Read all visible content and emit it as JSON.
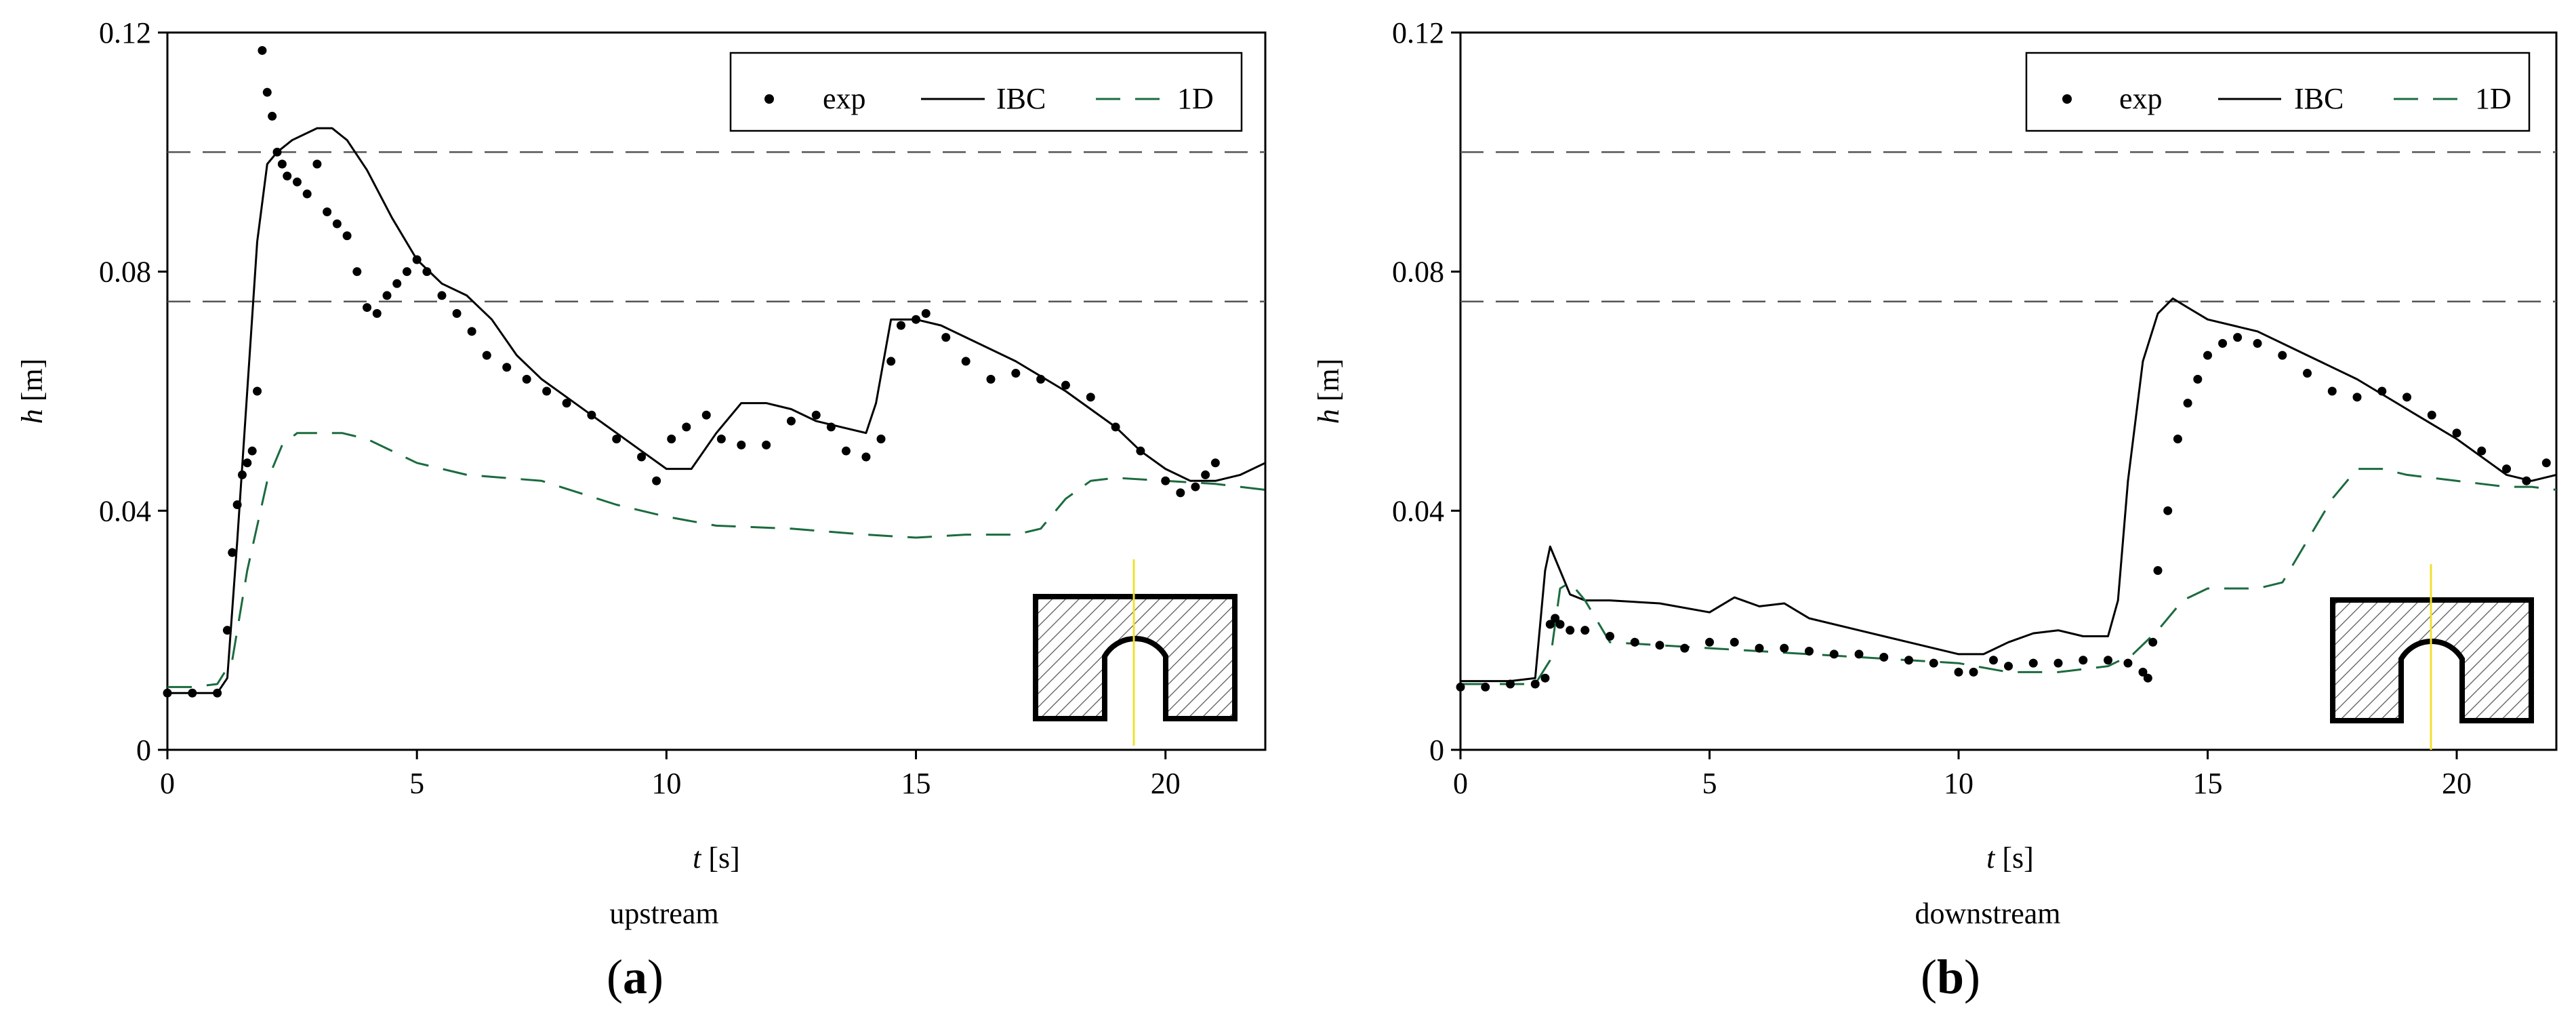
{
  "chart_data": [
    {
      "type": "line",
      "panel_label": "a",
      "caption": "upstream",
      "xlabel": "t",
      "xunit": "[s]",
      "ylabel": "h",
      "yunit": "[m]",
      "xlim": [
        0,
        22
      ],
      "ylim": [
        0,
        0.12
      ],
      "xticks": [
        0,
        5,
        10,
        15,
        20
      ],
      "xtick_labels": [
        "0",
        "5",
        "10",
        "15",
        "20"
      ],
      "yticks": [
        0,
        0.04,
        0.08,
        0.12
      ],
      "ytick_labels": [
        "0",
        "0.04",
        "0.08",
        "0.12"
      ],
      "grid": false,
      "reference_lines": [
        0.1,
        0.075
      ],
      "legend": {
        "placement": "top-right",
        "entries": [
          "exp",
          "IBC",
          "1D"
        ]
      },
      "series": [
        {
          "name": "exp",
          "style": "points",
          "color": "#000000",
          "x": [
            0,
            0.5,
            1.0,
            1.2,
            1.3,
            1.4,
            1.5,
            1.6,
            1.7,
            1.8,
            1.9,
            2.0,
            2.1,
            2.2,
            2.3,
            2.4,
            2.6,
            2.8,
            3.0,
            3.2,
            3.4,
            3.6,
            3.8,
            4.0,
            4.2,
            4.4,
            4.6,
            4.8,
            5.0,
            5.2,
            5.5,
            5.8,
            6.1,
            6.4,
            6.8,
            7.2,
            7.6,
            8.0,
            8.5,
            9.0,
            9.5,
            9.8,
            10.1,
            10.4,
            10.8,
            11.1,
            11.5,
            12.0,
            12.5,
            13.0,
            13.3,
            13.6,
            14.0,
            14.3,
            14.5,
            14.7,
            15.0,
            15.2,
            15.6,
            16.0,
            16.5,
            17.0,
            17.5,
            18.0,
            18.5,
            19.0,
            19.5,
            20.0,
            20.3,
            20.6,
            20.8,
            21.0
          ],
          "y": [
            0.0095,
            0.0095,
            0.0095,
            0.02,
            0.033,
            0.041,
            0.046,
            0.048,
            0.05,
            0.06,
            0.117,
            0.11,
            0.106,
            0.1,
            0.098,
            0.096,
            0.095,
            0.093,
            0.098,
            0.09,
            0.088,
            0.086,
            0.08,
            0.074,
            0.073,
            0.076,
            0.078,
            0.08,
            0.082,
            0.08,
            0.076,
            0.073,
            0.07,
            0.066,
            0.064,
            0.062,
            0.06,
            0.058,
            0.056,
            0.052,
            0.049,
            0.045,
            0.052,
            0.054,
            0.056,
            0.052,
            0.051,
            0.051,
            0.055,
            0.056,
            0.054,
            0.05,
            0.049,
            0.052,
            0.065,
            0.071,
            0.072,
            0.073,
            0.069,
            0.065,
            0.062,
            0.063,
            0.062,
            0.061,
            0.059,
            0.054,
            0.05,
            0.045,
            0.043,
            0.044,
            0.046,
            0.048
          ]
        },
        {
          "name": "IBC",
          "style": "solid",
          "color": "#000000",
          "x": [
            0,
            0.5,
            1.0,
            1.2,
            1.4,
            1.6,
            1.8,
            2.0,
            2.2,
            2.5,
            3.0,
            3.3,
            3.6,
            4.0,
            4.5,
            5.0,
            5.5,
            6.0,
            6.5,
            7.0,
            7.5,
            8.0,
            8.5,
            9.0,
            9.5,
            10.0,
            10.5,
            11.0,
            11.5,
            12.0,
            12.5,
            13.0,
            13.5,
            14.0,
            14.2,
            14.5,
            15.0,
            15.5,
            16.0,
            17.0,
            18.0,
            19.0,
            19.5,
            20.0,
            20.5,
            21.0,
            21.5,
            22.0
          ],
          "y": [
            0.0095,
            0.0095,
            0.0095,
            0.012,
            0.035,
            0.06,
            0.085,
            0.098,
            0.1,
            0.102,
            0.104,
            0.104,
            0.102,
            0.097,
            0.089,
            0.082,
            0.078,
            0.076,
            0.072,
            0.066,
            0.062,
            0.059,
            0.056,
            0.053,
            0.05,
            0.047,
            0.047,
            0.053,
            0.058,
            0.058,
            0.057,
            0.055,
            0.054,
            0.053,
            0.058,
            0.072,
            0.072,
            0.071,
            0.069,
            0.065,
            0.06,
            0.054,
            0.05,
            0.047,
            0.045,
            0.045,
            0.046,
            0.048
          ]
        },
        {
          "name": "1D",
          "style": "dashed",
          "color": "#1b6b3f",
          "x": [
            0,
            0.5,
            1.0,
            1.3,
            1.6,
            2.0,
            2.3,
            2.6,
            3.0,
            3.5,
            4.0,
            5.0,
            6.0,
            7.5,
            9.0,
            10.0,
            11.0,
            12.5,
            14.0,
            15.0,
            16.0,
            17.0,
            17.5,
            18.0,
            18.5,
            19.0,
            20.0,
            21.0,
            22.0
          ],
          "y": [
            0.0105,
            0.0105,
            0.011,
            0.015,
            0.03,
            0.045,
            0.051,
            0.053,
            0.053,
            0.053,
            0.052,
            0.048,
            0.046,
            0.045,
            0.041,
            0.039,
            0.0375,
            0.037,
            0.036,
            0.0355,
            0.036,
            0.036,
            0.037,
            0.042,
            0.045,
            0.0455,
            0.045,
            0.0445,
            0.0435
          ]
        }
      ]
    },
    {
      "type": "line",
      "panel_label": "b",
      "caption": "downstream",
      "xlabel": "t",
      "xunit": "[s]",
      "ylabel": "h",
      "yunit": "[m]",
      "xlim": [
        0,
        22
      ],
      "ylim": [
        0,
        0.12
      ],
      "xticks": [
        0,
        5,
        10,
        15,
        20
      ],
      "xtick_labels": [
        "0",
        "5",
        "10",
        "15",
        "20"
      ],
      "yticks": [
        0,
        0.04,
        0.08,
        0.12
      ],
      "ytick_labels": [
        "0",
        "0.04",
        "0.08",
        "0.12"
      ],
      "grid": false,
      "reference_lines": [
        0.1,
        0.075
      ],
      "legend": {
        "placement": "top-right",
        "entries": [
          "exp",
          "IBC",
          "1D"
        ]
      },
      "series": [
        {
          "name": "exp",
          "style": "points",
          "color": "#000000",
          "x": [
            0,
            0.5,
            1.0,
            1.5,
            1.7,
            1.8,
            1.9,
            2.0,
            2.2,
            2.5,
            3.0,
            3.5,
            4.0,
            4.5,
            5.0,
            5.5,
            6.0,
            6.5,
            7.0,
            7.5,
            8.0,
            8.5,
            9.0,
            9.5,
            10.0,
            10.3,
            10.7,
            11.0,
            11.5,
            12.0,
            12.5,
            13.0,
            13.4,
            13.7,
            13.8,
            13.9,
            14.0,
            14.2,
            14.4,
            14.6,
            14.8,
            15.0,
            15.3,
            15.6,
            16.0,
            16.5,
            17.0,
            17.5,
            18.0,
            18.5,
            19.0,
            19.5,
            20.0,
            20.5,
            21.0,
            21.4,
            21.8
          ],
          "y": [
            0.0105,
            0.0105,
            0.011,
            0.011,
            0.012,
            0.021,
            0.022,
            0.021,
            0.02,
            0.02,
            0.019,
            0.018,
            0.0175,
            0.017,
            0.018,
            0.018,
            0.017,
            0.017,
            0.0165,
            0.016,
            0.016,
            0.0155,
            0.015,
            0.0145,
            0.013,
            0.013,
            0.015,
            0.014,
            0.0145,
            0.0145,
            0.015,
            0.015,
            0.0145,
            0.013,
            0.012,
            0.018,
            0.03,
            0.04,
            0.052,
            0.058,
            0.062,
            0.066,
            0.068,
            0.069,
            0.068,
            0.066,
            0.063,
            0.06,
            0.059,
            0.06,
            0.059,
            0.056,
            0.053,
            0.05,
            0.047,
            0.045,
            0.048
          ]
        },
        {
          "name": "IBC",
          "style": "solid",
          "color": "#000000",
          "x": [
            0,
            0.5,
            1.0,
            1.5,
            1.7,
            1.8,
            2.0,
            2.2,
            2.5,
            3.0,
            4.0,
            5.0,
            5.5,
            6.0,
            6.5,
            7.0,
            8.0,
            9.0,
            10.0,
            10.5,
            11.0,
            11.5,
            12.0,
            12.5,
            13.0,
            13.2,
            13.4,
            13.7,
            14.0,
            14.3,
            14.6,
            15.0,
            16.0,
            17.0,
            18.0,
            19.0,
            20.0,
            21.0,
            21.5,
            22.0
          ],
          "y": [
            0.0115,
            0.0115,
            0.0115,
            0.012,
            0.03,
            0.034,
            0.03,
            0.026,
            0.025,
            0.025,
            0.0245,
            0.023,
            0.0255,
            0.024,
            0.0245,
            0.022,
            0.02,
            0.018,
            0.016,
            0.016,
            0.018,
            0.0195,
            0.02,
            0.019,
            0.019,
            0.025,
            0.045,
            0.065,
            0.073,
            0.0755,
            0.074,
            0.072,
            0.07,
            0.066,
            0.062,
            0.057,
            0.052,
            0.046,
            0.045,
            0.046
          ]
        },
        {
          "name": "1D",
          "style": "dashed",
          "color": "#1b6b3f",
          "x": [
            0,
            0.5,
            1.0,
            1.5,
            1.8,
            2.0,
            2.2,
            2.5,
            3.0,
            4.0,
            5.0,
            6.0,
            7.0,
            8.0,
            9.0,
            10.0,
            11.0,
            12.0,
            13.0,
            13.5,
            14.0,
            14.5,
            15.0,
            16.0,
            16.5,
            17.0,
            17.5,
            18.0,
            18.5,
            19.0,
            20.0,
            21.0,
            21.5,
            22.0
          ],
          "y": [
            0.011,
            0.011,
            0.011,
            0.011,
            0.015,
            0.027,
            0.028,
            0.025,
            0.018,
            0.0175,
            0.017,
            0.0165,
            0.016,
            0.0155,
            0.015,
            0.0145,
            0.013,
            0.013,
            0.014,
            0.016,
            0.02,
            0.025,
            0.027,
            0.027,
            0.028,
            0.035,
            0.042,
            0.047,
            0.047,
            0.046,
            0.045,
            0.044,
            0.044,
            0.0435
          ]
        }
      ]
    }
  ]
}
